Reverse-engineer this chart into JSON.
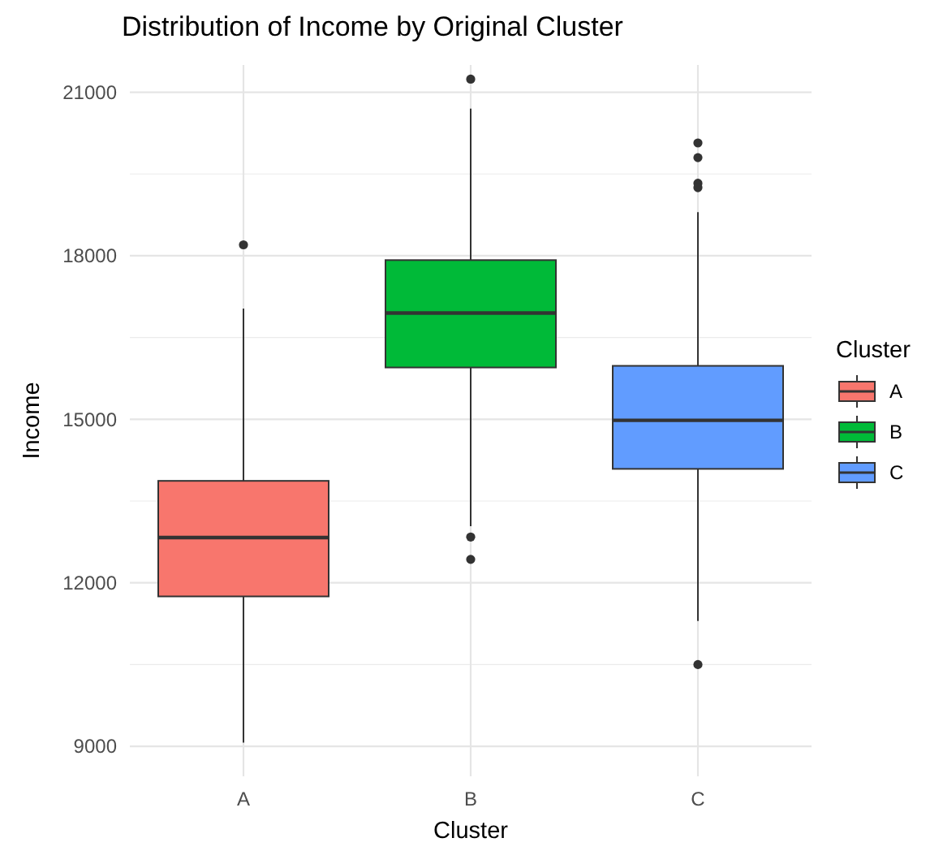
{
  "chart_data": {
    "type": "box",
    "title": "Distribution of Income by Original Cluster",
    "xlabel": "Cluster",
    "ylabel": "Income",
    "legend_title": "Cluster",
    "categories": [
      "A",
      "B",
      "C"
    ],
    "series": [
      {
        "name": "A",
        "color": "#f8766d",
        "boxes": [
          {
            "low": 9070,
            "q1": 11750,
            "median": 12830,
            "q3": 13870,
            "high": 17030,
            "outliers": [
              18200
            ]
          },
          null,
          null
        ]
      },
      {
        "name": "B",
        "color": "#00ba38",
        "boxes": [
          null,
          {
            "low": 13040,
            "q1": 15950,
            "median": 16950,
            "q3": 17920,
            "high": 20700,
            "outliers": [
              21240,
              12840,
              12430
            ]
          },
          null
        ]
      },
      {
        "name": "C",
        "color": "#619cff",
        "boxes": [
          null,
          null,
          {
            "low": 11300,
            "q1": 14090,
            "median": 14980,
            "q3": 15980,
            "high": 18800,
            "outliers": [
              20070,
              19800,
              19330,
              19250,
              10500
            ]
          }
        ]
      }
    ],
    "ylim": [
      8450,
      21500
    ],
    "yticks": [
      9000,
      12000,
      15000,
      18000,
      21000
    ],
    "grid": true,
    "legend": "right"
  }
}
